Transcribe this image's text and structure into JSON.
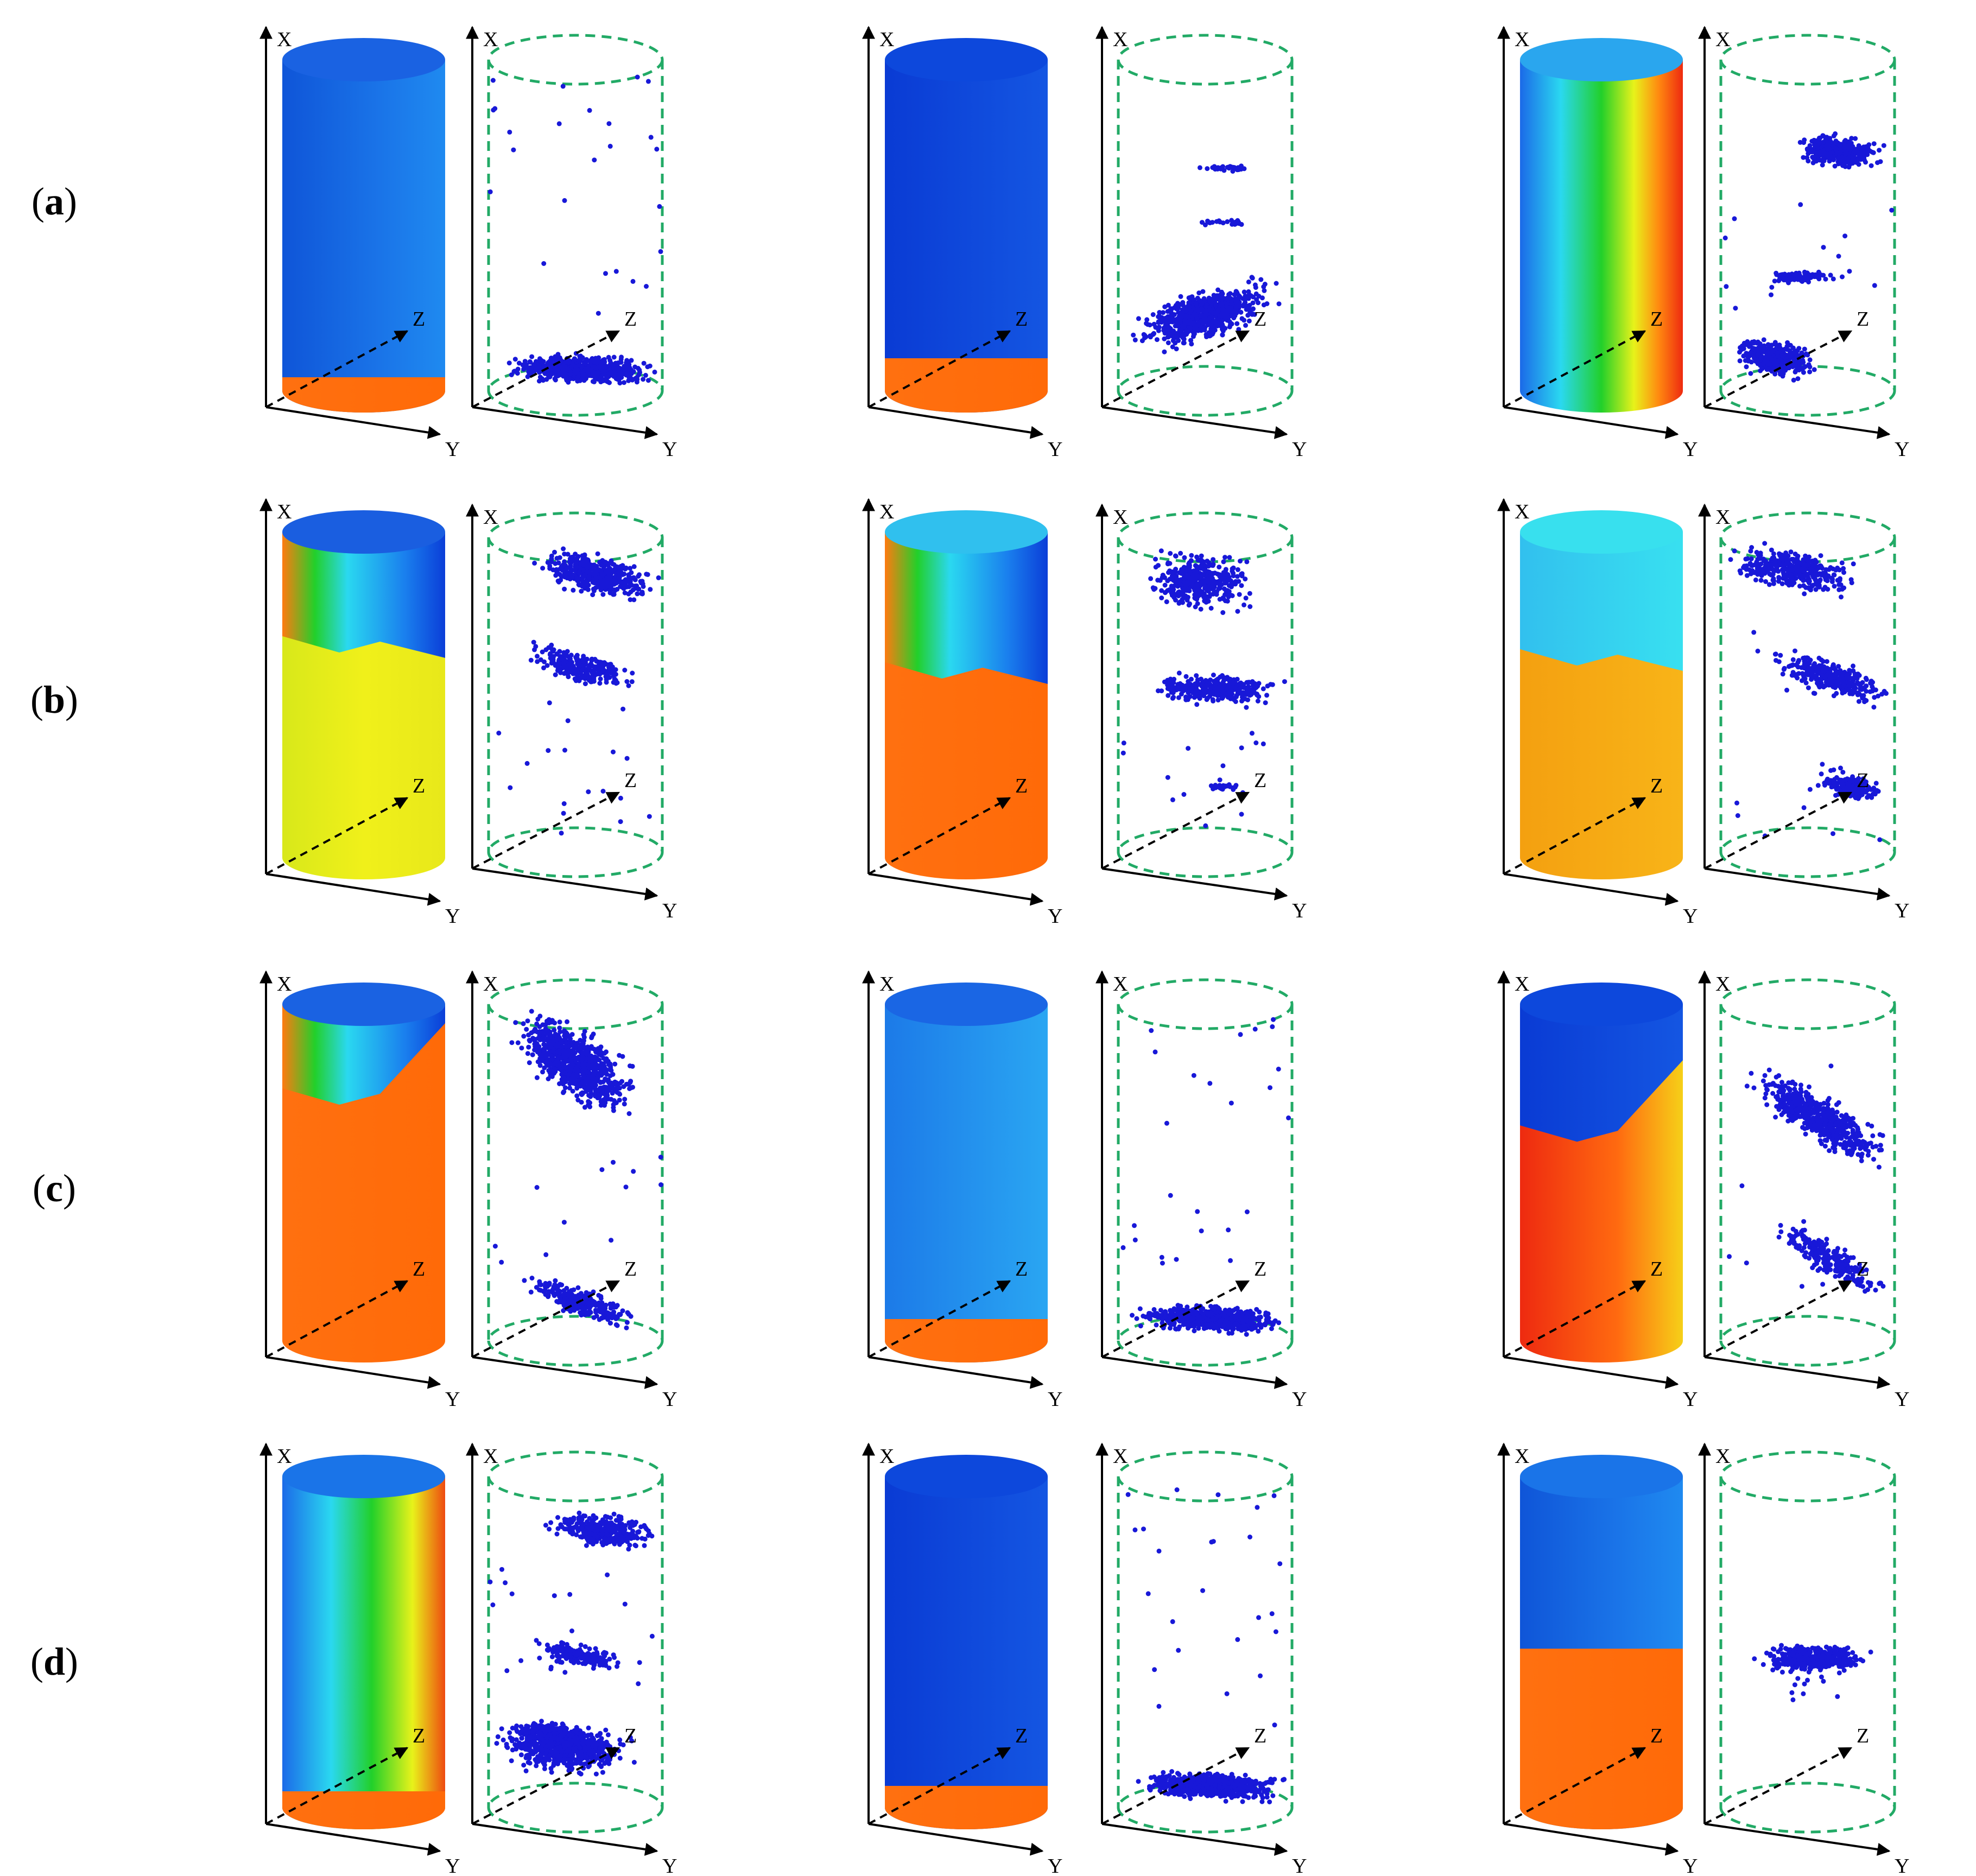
{
  "figure": {
    "rows": [
      {
        "label": "a",
        "panels": [
          {
            "axis_variant": 1,
            "cyl_scheme": "a1",
            "pts": "bottom"
          },
          {
            "axis_variant": 1,
            "cyl_scheme": "a2",
            "pts": "lower-band"
          },
          {
            "axis_variant": 1,
            "cyl_scheme": "a3",
            "pts": "three"
          }
        ]
      },
      {
        "label": "b",
        "panels": [
          {
            "axis_variant": 2,
            "cyl_scheme": "b1",
            "pts": "two-top"
          },
          {
            "axis_variant": 3,
            "cyl_scheme": "b2",
            "pts": "top-mid"
          },
          {
            "axis_variant": 4,
            "cyl_scheme": "b3",
            "pts": "diag3"
          }
        ]
      },
      {
        "label": "c",
        "panels": [
          {
            "axis_variant": 5,
            "cyl_scheme": "c1",
            "pts": "top-diag"
          },
          {
            "axis_variant": 5,
            "cyl_scheme": "c2",
            "pts": "bottom"
          },
          {
            "axis_variant": 5,
            "cyl_scheme": "c3",
            "pts": "mid-diag"
          }
        ]
      },
      {
        "label": "d",
        "panels": [
          {
            "axis_variant": 6,
            "cyl_scheme": "d1",
            "pts": "many"
          },
          {
            "axis_variant": 7,
            "cyl_scheme": "d2",
            "pts": "bottom"
          },
          {
            "axis_variant": 7,
            "cyl_scheme": "d3",
            "pts": "mid"
          }
        ]
      }
    ],
    "axis_labels": {
      "x": "X",
      "y": "Y",
      "z": "Z"
    },
    "colors": {
      "blue": "#1565e0",
      "deep_blue": "#0b3ed8",
      "light_blue": "#29a8f0",
      "cyan": "#38d8f0",
      "green": "#22d02a",
      "yellow": "#e8f21a",
      "orange": "#ff7a10",
      "red": "#ee2a10",
      "points": "#1818d8",
      "outline": "#22aa66"
    }
  }
}
